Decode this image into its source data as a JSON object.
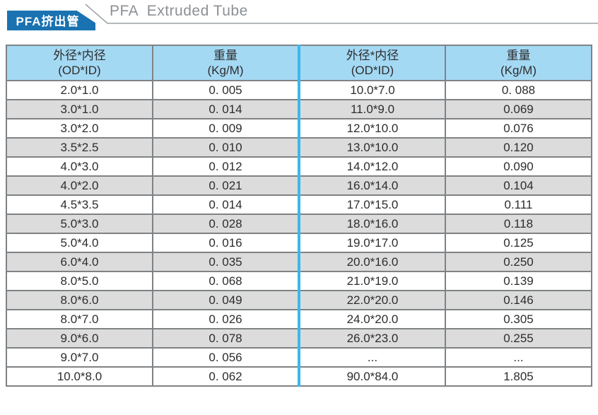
{
  "header": {
    "badge_label": "PFA挤出管",
    "title": "PFA  Extruded Tube"
  },
  "colors": {
    "badge_blue": "#1a72b1",
    "header_bg": "#a4d9f4",
    "zebra": "#dcdcdc",
    "divider_cyan": "#3cb8ec",
    "grid": "#7f8285",
    "outer_border": "#62666a",
    "rule_gray": "#9aa0a4",
    "title_gray": "#8c9094",
    "text": "#2d2d2d"
  },
  "table": {
    "headers": [
      {
        "line1": "外径*内径",
        "line2": "(OD*ID)"
      },
      {
        "line1": "重量",
        "line2": "(Kg/M)"
      },
      {
        "line1": "外径*内径",
        "line2": "(OD*ID)"
      },
      {
        "line1": "重量",
        "line2": "(Kg/M)"
      }
    ],
    "rows": [
      [
        "2.0*1.0",
        "0. 005",
        "10.0*7.0",
        "0. 088"
      ],
      [
        "3.0*1.0",
        "0. 014",
        "11.0*9.0",
        "0.069"
      ],
      [
        "3.0*2.0",
        "0. 009",
        "12.0*10.0",
        "0.076"
      ],
      [
        "3.5*2.5",
        "0. 010",
        "13.0*10.0",
        "0.120"
      ],
      [
        "4.0*3.0",
        "0. 012",
        "14.0*12.0",
        "0.090"
      ],
      [
        "4.0*2.0",
        "0. 021",
        "16.0*14.0",
        "0.104"
      ],
      [
        "4.5*3.5",
        "0. 014",
        "17.0*15.0",
        "0.111"
      ],
      [
        "5.0*3.0",
        "0. 028",
        "18.0*16.0",
        "0.118"
      ],
      [
        "5.0*4.0",
        "0. 016",
        "19.0*17.0",
        "0.125"
      ],
      [
        "6.0*4.0",
        "0. 035",
        "20.0*16.0",
        "0.250"
      ],
      [
        "8.0*5.0",
        "0. 068",
        "21.0*19.0",
        "0.139"
      ],
      [
        "8.0*6.0",
        "0. 049",
        "22.0*20.0",
        "0.146"
      ],
      [
        "8.0*7.0",
        "0. 026",
        "24.0*20.0",
        "0.305"
      ],
      [
        "9.0*6.0",
        "0. 078",
        "26.0*23.0",
        "0.255"
      ],
      [
        "9.0*7.0",
        "0. 056",
        "...",
        "..."
      ],
      [
        "10.0*8.0",
        "0. 062",
        "90.0*84.0",
        "1.805"
      ]
    ]
  }
}
